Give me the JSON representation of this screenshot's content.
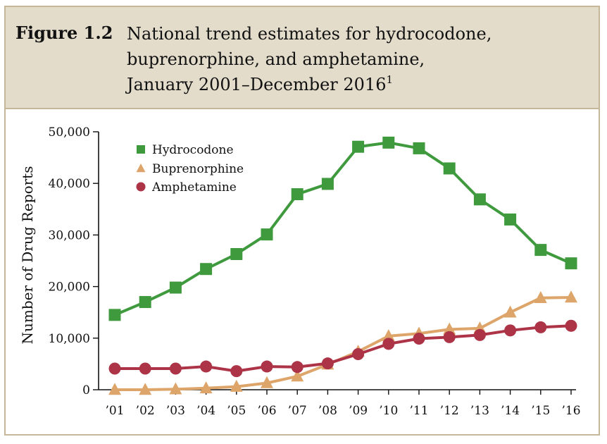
{
  "figure": {
    "label": "Figure 1.2",
    "title_lines": [
      "National trend estimates for hydrocodone,",
      "buprenorphine, and amphetamine,",
      "January 2001–December 2016"
    ],
    "footnote_mark": "1"
  },
  "colors": {
    "header_bg": "#e3dccb",
    "border": "#c7b79a",
    "hydrocodone": "#3f9a3e",
    "buprenorphine": "#dda56a",
    "amphetamine": "#ad3347"
  },
  "chart_data": {
    "type": "line",
    "ylabel": "Number of Drug Reports",
    "xlabel": "",
    "categories": [
      "’01",
      "’02",
      "’03",
      "’04",
      "’05",
      "’06",
      "’07",
      "’08",
      "’09",
      "’10",
      "’11",
      "’12",
      "’13",
      "’14",
      "’15",
      "’16"
    ],
    "ylim": [
      0,
      50000
    ],
    "yticks": [
      0,
      10000,
      20000,
      30000,
      40000,
      50000
    ],
    "ytick_labels": [
      "0",
      "10,000",
      "20,000",
      "30,000",
      "40,000",
      "50,000"
    ],
    "grid": false,
    "legend_position": "top-left",
    "series": [
      {
        "name": "Hydrocodone",
        "marker": "square",
        "values": [
          14500,
          17000,
          19800,
          23400,
          26300,
          30100,
          37900,
          39900,
          47100,
          47900,
          46800,
          42900,
          36900,
          33000,
          27100,
          24500
        ]
      },
      {
        "name": "Buprenorphine",
        "marker": "triangle",
        "values": [
          0,
          0,
          100,
          300,
          600,
          1300,
          2600,
          4900,
          7400,
          10400,
          10900,
          11700,
          11900,
          15000,
          17800,
          17900
        ]
      },
      {
        "name": "Amphetamine",
        "marker": "circle",
        "values": [
          4100,
          4100,
          4100,
          4500,
          3600,
          4500,
          4400,
          5100,
          6900,
          8900,
          9900,
          10200,
          10600,
          11500,
          12100,
          12400
        ]
      }
    ]
  }
}
